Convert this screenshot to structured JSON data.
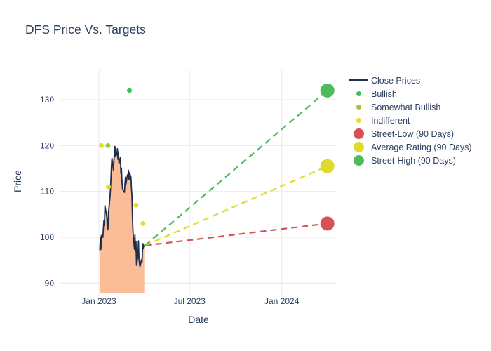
{
  "title": "DFS Price Vs. Targets",
  "legend": {
    "items": [
      {
        "label": "Close Prices",
        "marker": "line",
        "color": "#202e4e"
      },
      {
        "label": "Bullish",
        "marker": "dot-small",
        "color": "#45bd53"
      },
      {
        "label": "Somewhat Bullish",
        "marker": "dot-small",
        "color": "#9bcb3b"
      },
      {
        "label": "Indifferent",
        "marker": "dot-small",
        "color": "#e4de2a"
      },
      {
        "label": "Street-Low (90 Days)",
        "marker": "dot-large",
        "color": "#d85158"
      },
      {
        "label": "Average Rating (90 Days)",
        "marker": "dot-large",
        "color": "#e0da2e"
      },
      {
        "label": "Street-High (90 Days)",
        "marker": "dot-large",
        "color": "#4cbc5c"
      }
    ]
  },
  "chart_data": {
    "type": "line",
    "title": "DFS Price Vs. Targets",
    "xlabel": "Date",
    "ylabel": "Price",
    "x_tick_labels": [
      "Jan 2023",
      "Jul 2023",
      "Jan 2024"
    ],
    "x_tick_dates": [
      "2023-01-01",
      "2023-07-01",
      "2024-01-01"
    ],
    "y_ticks": [
      90,
      100,
      110,
      120,
      130
    ],
    "ylim": [
      88,
      136.5
    ],
    "xlim_dates": [
      "2022-10-14",
      "2024-04-21"
    ],
    "grid": true,
    "legend_position": "right",
    "background": "#ffffff",
    "gridline_color": "#e9eef6",
    "text_color": "#2a3f5f",
    "series": [
      {
        "name": "Close Prices",
        "type": "line-area",
        "line_color": "#202e4e",
        "fill_color": "#fabd98",
        "points": [
          [
            "2023-01-03",
            97.1
          ],
          [
            "2023-01-04",
            99.9
          ],
          [
            "2023-01-05",
            97.4
          ],
          [
            "2023-01-06",
            100.4
          ],
          [
            "2023-01-09",
            100.0
          ],
          [
            "2023-01-10",
            102.0
          ],
          [
            "2023-01-11",
            103.6
          ],
          [
            "2023-01-12",
            102.6
          ],
          [
            "2023-01-13",
            106.9
          ],
          [
            "2023-01-17",
            104.3
          ],
          [
            "2023-01-18",
            101.6
          ],
          [
            "2023-01-19",
            101.8
          ],
          [
            "2023-01-20",
            105.2
          ],
          [
            "2023-01-23",
            108.6
          ],
          [
            "2023-01-24",
            110.2
          ],
          [
            "2023-01-25",
            112.6
          ],
          [
            "2023-01-26",
            115.6
          ],
          [
            "2023-01-27",
            117.2
          ],
          [
            "2023-01-30",
            114.6
          ],
          [
            "2023-01-31",
            116.6
          ],
          [
            "2023-02-01",
            118.4
          ],
          [
            "2023-02-02",
            119.8
          ],
          [
            "2023-02-03",
            117.6
          ],
          [
            "2023-02-06",
            118.1
          ],
          [
            "2023-02-07",
            119.3
          ],
          [
            "2023-02-08",
            117.0
          ],
          [
            "2023-02-09",
            118.6
          ],
          [
            "2023-02-10",
            116.1
          ],
          [
            "2023-02-13",
            117.4
          ],
          [
            "2023-02-14",
            113.9
          ],
          [
            "2023-02-15",
            115.1
          ],
          [
            "2023-02-16",
            112.2
          ],
          [
            "2023-02-17",
            110.6
          ],
          [
            "2023-02-21",
            109.8
          ],
          [
            "2023-02-22",
            111.6
          ],
          [
            "2023-02-23",
            113.1
          ],
          [
            "2023-02-24",
            111.6
          ],
          [
            "2023-02-27",
            113.6
          ],
          [
            "2023-02-28",
            113.1
          ],
          [
            "2023-03-01",
            114.6
          ],
          [
            "2023-03-02",
            112.6
          ],
          [
            "2023-03-03",
            114.1
          ],
          [
            "2023-03-06",
            113.1
          ],
          [
            "2023-03-07",
            110.6
          ],
          [
            "2023-03-08",
            109.1
          ],
          [
            "2023-03-09",
            104.1
          ],
          [
            "2023-03-10",
            101.1
          ],
          [
            "2023-03-13",
            97.4
          ],
          [
            "2023-03-14",
            100.6
          ],
          [
            "2023-03-15",
            96.9
          ],
          [
            "2023-03-16",
            99.1
          ],
          [
            "2023-03-17",
            93.9
          ],
          [
            "2023-03-20",
            96.1
          ],
          [
            "2023-03-21",
            99.2
          ],
          [
            "2023-03-22",
            95.4
          ],
          [
            "2023-03-23",
            94.1
          ],
          [
            "2023-03-24",
            93.6
          ],
          [
            "2023-03-27",
            95.1
          ],
          [
            "2023-03-28",
            94.6
          ],
          [
            "2023-03-29",
            97.1
          ],
          [
            "2023-03-30",
            98.6
          ],
          [
            "2023-03-31",
            97.6
          ],
          [
            "2023-04-03",
            98.2
          ]
        ]
      },
      {
        "name": "Bullish",
        "type": "scatter",
        "color": "#45bd53",
        "points": [
          [
            "2023-03-03",
            132
          ]
        ]
      },
      {
        "name": "Somewhat Bullish",
        "type": "scatter",
        "color": "#9bcb3b",
        "points": [
          [
            "2023-01-19",
            120
          ]
        ]
      },
      {
        "name": "Indifferent",
        "type": "scatter",
        "color": "#e4de2a",
        "points": [
          [
            "2023-01-06",
            120
          ],
          [
            "2023-01-20",
            111
          ],
          [
            "2023-03-16",
            107
          ],
          [
            "2023-03-30",
            103
          ]
        ]
      },
      {
        "name": "Street-Low (90 Days)",
        "type": "target",
        "color": "#d85158",
        "from": [
          "2023-04-03",
          98.2
        ],
        "point": [
          "2024-04-01",
          103
        ]
      },
      {
        "name": "Average Rating (90 Days)",
        "type": "target",
        "color": "#e0da2e",
        "from": [
          "2023-04-03",
          98.2
        ],
        "point": [
          "2024-04-01",
          115.5
        ]
      },
      {
        "name": "Street-High (90 Days)",
        "type": "target",
        "color": "#4cbc5c",
        "from": [
          "2023-04-03",
          98.2
        ],
        "point": [
          "2024-04-01",
          132
        ]
      }
    ]
  }
}
